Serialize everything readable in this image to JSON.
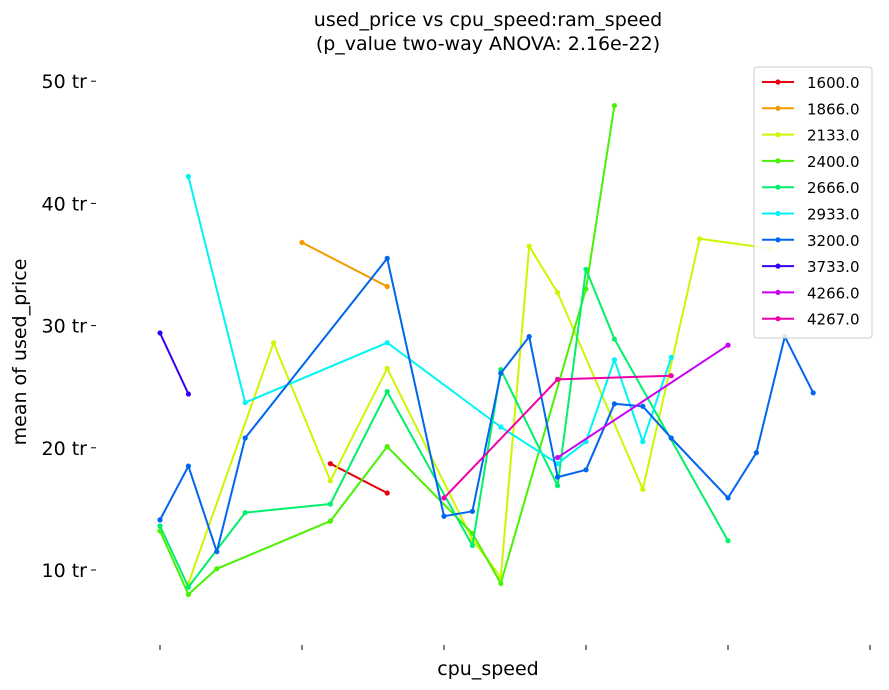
{
  "chart_data": {
    "type": "line",
    "title": [
      "used_price vs cpu_speed:ram_speed",
      "(p_value two-way ANOVA: 2.16e-22)"
    ],
    "xlabel": "cpu_speed",
    "ylabel": "mean of used_price",
    "x_tick_labels": [
      "",
      "",
      "",
      "",
      "",
      ""
    ],
    "x_range": [
      0,
      25
    ],
    "y_ticks": [
      {
        "value": 10,
        "label": "10 tr"
      },
      {
        "value": 20,
        "label": "20 tr"
      },
      {
        "value": 30,
        "label": "30 tr"
      },
      {
        "value": 40,
        "label": "40 tr"
      },
      {
        "value": 50,
        "label": "50 tr"
      }
    ],
    "ylim": [
      4,
      52
    ],
    "grid": false,
    "legend_position": "top-right",
    "series": [
      {
        "name": "1600.0",
        "color": "#e8000b",
        "points": [
          [
            6,
            18.7
          ],
          [
            8,
            16.3
          ]
        ]
      },
      {
        "name": "1866.0",
        "color": "#f59a00",
        "points": [
          [
            5,
            36.8
          ],
          [
            8,
            33.2
          ]
        ]
      },
      {
        "name": "2133.0",
        "color": "#cdf700",
        "points": [
          [
            1,
            8.9
          ],
          [
            4,
            28.6
          ],
          [
            6,
            17.3
          ],
          [
            8,
            26.5
          ],
          [
            11,
            12.5
          ],
          [
            12,
            9.4
          ],
          [
            13,
            36.5
          ],
          [
            14,
            32.7
          ],
          [
            17,
            16.6
          ],
          [
            19,
            37.1
          ],
          [
            21.5,
            36.3
          ]
        ]
      },
      {
        "name": "2400.0",
        "color": "#48f200",
        "points": [
          [
            0,
            13.2
          ],
          [
            1,
            8.0
          ],
          [
            2,
            10.1
          ],
          [
            6,
            14.0
          ],
          [
            8,
            20.1
          ],
          [
            11,
            13.0
          ],
          [
            12,
            8.9
          ],
          [
            15,
            33.0
          ],
          [
            16,
            48.0
          ]
        ]
      },
      {
        "name": "2666.0",
        "color": "#00f06c",
        "points": [
          [
            0,
            13.6
          ],
          [
            1,
            8.6
          ],
          [
            3,
            14.7
          ],
          [
            6,
            15.4
          ],
          [
            8,
            24.6
          ],
          [
            11,
            12.0
          ],
          [
            12,
            26.4
          ],
          [
            14,
            16.9
          ],
          [
            15,
            34.6
          ],
          [
            16,
            28.9
          ],
          [
            20,
            12.4
          ]
        ]
      },
      {
        "name": "2933.0",
        "color": "#00f4f4",
        "points": [
          [
            1,
            42.2
          ],
          [
            3,
            23.7
          ],
          [
            8,
            28.6
          ],
          [
            12,
            21.7
          ],
          [
            14,
            18.7
          ],
          [
            15,
            20.5
          ],
          [
            16,
            27.2
          ],
          [
            17,
            20.5
          ],
          [
            18,
            27.4
          ]
        ]
      },
      {
        "name": "3200.0",
        "color": "#0066f0",
        "points": [
          [
            0,
            14.1
          ],
          [
            1,
            18.5
          ],
          [
            2,
            11.5
          ],
          [
            3,
            20.8
          ],
          [
            8,
            35.5
          ],
          [
            10,
            14.4
          ],
          [
            11,
            14.8
          ],
          [
            12,
            26.1
          ],
          [
            13,
            29.1
          ],
          [
            14,
            17.6
          ],
          [
            15,
            18.2
          ],
          [
            16,
            23.6
          ],
          [
            17,
            23.4
          ],
          [
            18,
            20.8
          ],
          [
            20,
            15.9
          ],
          [
            21,
            19.6
          ],
          [
            22,
            29.1
          ],
          [
            23,
            24.5
          ]
        ]
      },
      {
        "name": "3733.0",
        "color": "#3800f2",
        "points": [
          [
            0,
            29.4
          ],
          [
            1,
            24.4
          ]
        ]
      },
      {
        "name": "4266.0",
        "color": "#c900f7",
        "points": [
          [
            14,
            19.2
          ],
          [
            20,
            28.4
          ]
        ]
      },
      {
        "name": "4267.0",
        "color": "#f000a8",
        "points": [
          [
            10,
            15.9
          ],
          [
            14,
            25.6
          ],
          [
            18,
            25.9
          ]
        ]
      }
    ]
  }
}
